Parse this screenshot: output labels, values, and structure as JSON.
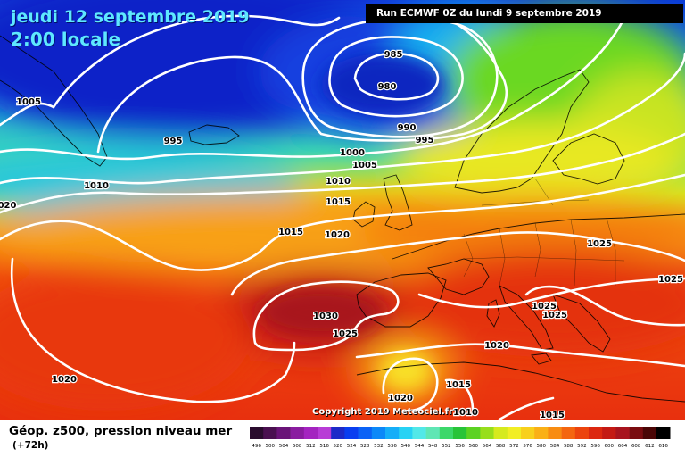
{
  "header": {
    "date": "jeudi 12 septembre 2019",
    "time": "2:00 locale",
    "run": "Run ECMWF 0Z du lundi 9 septembre 2019"
  },
  "legend": {
    "title": "Géop. z500, pression niveau mer",
    "lead_time": "(+72h)",
    "scale_values": [
      "496",
      "500",
      "504",
      "508",
      "512",
      "516",
      "520",
      "524",
      "528",
      "532",
      "536",
      "540",
      "544",
      "548",
      "552",
      "556",
      "560",
      "564",
      "568",
      "572",
      "576",
      "580",
      "584",
      "588",
      "592",
      "596",
      "600",
      "604",
      "608",
      "612",
      "616"
    ],
    "scale_colors": [
      "#2a0c2e",
      "#4a1050",
      "#6a1478",
      "#8a1ca0",
      "#a424c0",
      "#b83cd6",
      "#1e2ac8",
      "#0a3ef0",
      "#0b62f6",
      "#0c88f8",
      "#16aef8",
      "#28d2f4",
      "#52e8e8",
      "#5fe6b4",
      "#3cd86a",
      "#28c438",
      "#5cd222",
      "#98de1c",
      "#d6ea1e",
      "#f2ee24",
      "#f8d01c",
      "#fab016",
      "#f88c12",
      "#f46610",
      "#ec440e",
      "#dc2810",
      "#c41a14",
      "#a8141e",
      "#7a0c10",
      "#4a0606",
      "#000000"
    ]
  },
  "isobar_labels": [
    {
      "text": "985"
    },
    {
      "text": "980"
    },
    {
      "text": "990"
    },
    {
      "text": "995"
    },
    {
      "text": "1005"
    },
    {
      "text": "995"
    },
    {
      "text": "1000"
    },
    {
      "text": "1005"
    },
    {
      "text": "1010"
    },
    {
      "text": "1010"
    },
    {
      "text": "1015"
    },
    {
      "text": "1015"
    },
    {
      "text": "1020"
    },
    {
      "text": "020"
    },
    {
      "text": "1025"
    },
    {
      "text": "1025"
    },
    {
      "text": "1025"
    },
    {
      "text": "1025"
    },
    {
      "text": "1030"
    },
    {
      "text": "1025"
    },
    {
      "text": "1020"
    },
    {
      "text": "1020"
    },
    {
      "text": "1020"
    },
    {
      "text": "1015"
    },
    {
      "text": "1010"
    },
    {
      "text": "1015"
    }
  ],
  "copyright": "Copyright 2019 Meteociel.fr"
}
